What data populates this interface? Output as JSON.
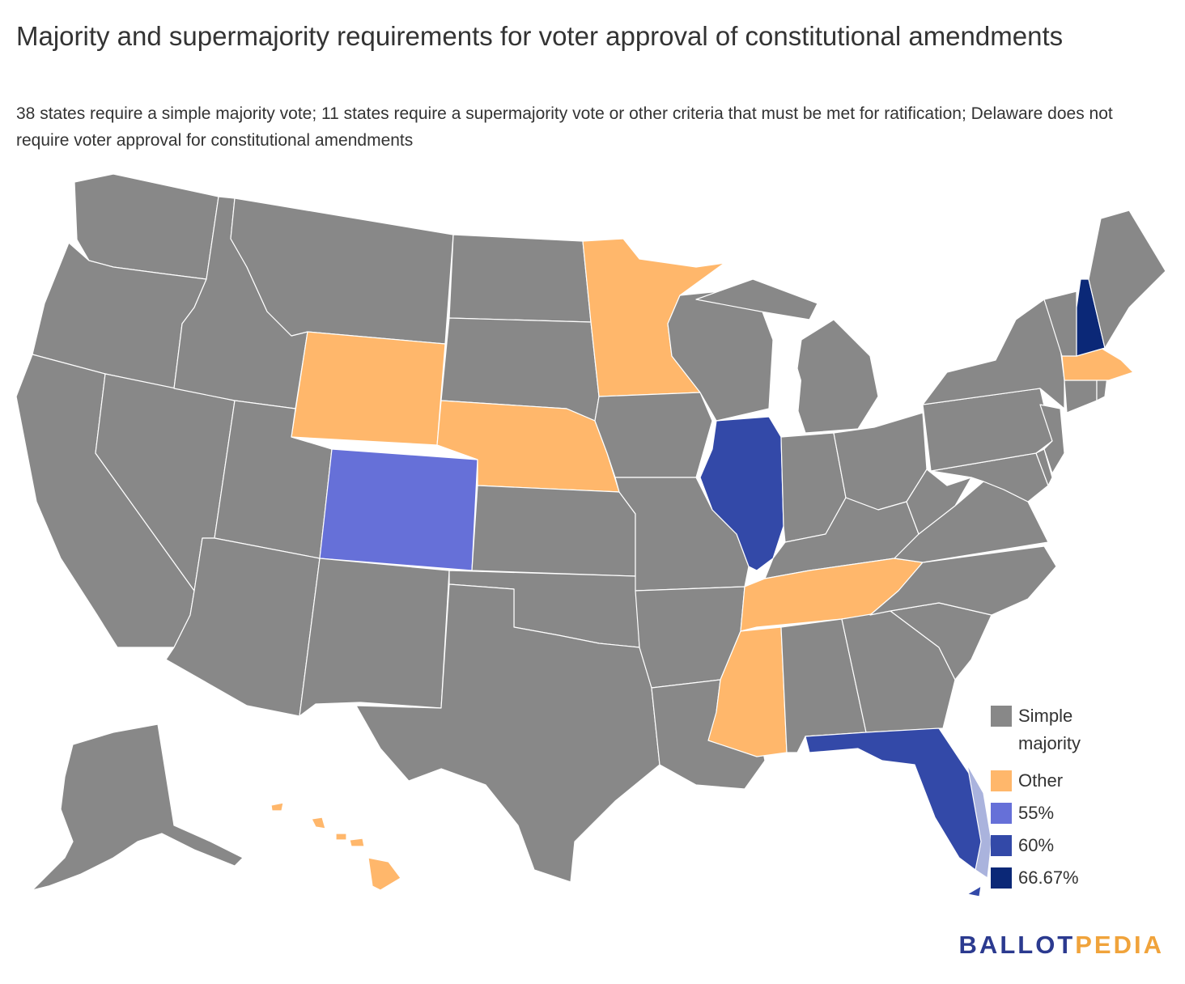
{
  "title": "Majority and supermajority requirements for voter approval of constitutional amendments",
  "subtitle": "38 states require a simple majority vote; 11 states require a supermajority vote or other criteria that must be met for ratification; Delaware does not require voter approval for constitutional amendments",
  "legend": [
    {
      "label": "Simple majority",
      "color": "#888888"
    },
    {
      "label": "Other",
      "color": "#ffb76b"
    },
    {
      "label": "55%",
      "color": "#6670d8"
    },
    {
      "label": "60%",
      "color": "#3349a8"
    },
    {
      "label": "66.67%",
      "color": "#0b2877"
    }
  ],
  "states": {
    "simple_majority": [
      "WA",
      "OR",
      "CA",
      "NV",
      "ID",
      "MT",
      "UT",
      "AZ",
      "NM",
      "ND",
      "SD",
      "KS",
      "OK",
      "TX",
      "IA",
      "MO",
      "AR",
      "LA",
      "WI",
      "MI",
      "IN",
      "OH",
      "KY",
      "WV",
      "VA",
      "NC",
      "SC",
      "GA",
      "AL",
      "PA",
      "NY",
      "VT",
      "ME",
      "CT",
      "RI",
      "NJ",
      "MD",
      "AK"
    ],
    "other": [
      "WY",
      "NE",
      "MN",
      "MA",
      "TN",
      "MS",
      "HI"
    ],
    "55%": [
      "CO"
    ],
    "60%": [
      "IL",
      "FL"
    ],
    "66.67%": [
      "NH"
    ],
    "no_voter_approval": [
      "DE"
    ]
  },
  "logo": {
    "part1": "BALLOT",
    "part2": "PEDIA"
  }
}
